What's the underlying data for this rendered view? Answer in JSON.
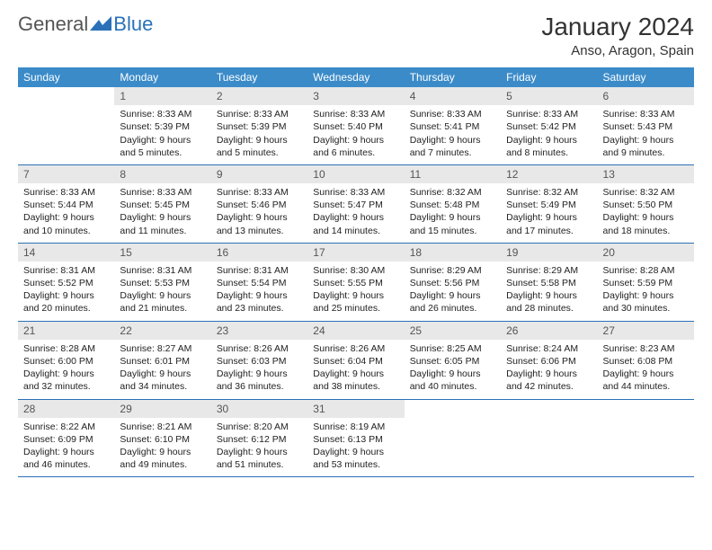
{
  "logo": {
    "text1": "General",
    "text2": "Blue"
  },
  "title": "January 2024",
  "location": "Anso, Aragon, Spain",
  "colors": {
    "header_bg": "#3b8bc9",
    "header_text": "#ffffff",
    "daynum_bg": "#e8e8e8",
    "daynum_text": "#555555",
    "border": "#2a71b8",
    "logo_gray": "#555555",
    "logo_blue": "#2a71b8",
    "body_text": "#222222",
    "background": "#ffffff"
  },
  "typography": {
    "title_fontsize": 28,
    "location_fontsize": 15,
    "weekday_fontsize": 12,
    "daynum_fontsize": 12,
    "cell_fontsize": 10.5
  },
  "weekdays": [
    "Sunday",
    "Monday",
    "Tuesday",
    "Wednesday",
    "Thursday",
    "Friday",
    "Saturday"
  ],
  "weeks": [
    [
      null,
      {
        "n": "1",
        "sunrise": "8:33 AM",
        "sunset": "5:39 PM",
        "daylight": "9 hours and 5 minutes."
      },
      {
        "n": "2",
        "sunrise": "8:33 AM",
        "sunset": "5:39 PM",
        "daylight": "9 hours and 5 minutes."
      },
      {
        "n": "3",
        "sunrise": "8:33 AM",
        "sunset": "5:40 PM",
        "daylight": "9 hours and 6 minutes."
      },
      {
        "n": "4",
        "sunrise": "8:33 AM",
        "sunset": "5:41 PM",
        "daylight": "9 hours and 7 minutes."
      },
      {
        "n": "5",
        "sunrise": "8:33 AM",
        "sunset": "5:42 PM",
        "daylight": "9 hours and 8 minutes."
      },
      {
        "n": "6",
        "sunrise": "8:33 AM",
        "sunset": "5:43 PM",
        "daylight": "9 hours and 9 minutes."
      }
    ],
    [
      {
        "n": "7",
        "sunrise": "8:33 AM",
        "sunset": "5:44 PM",
        "daylight": "9 hours and 10 minutes."
      },
      {
        "n": "8",
        "sunrise": "8:33 AM",
        "sunset": "5:45 PM",
        "daylight": "9 hours and 11 minutes."
      },
      {
        "n": "9",
        "sunrise": "8:33 AM",
        "sunset": "5:46 PM",
        "daylight": "9 hours and 13 minutes."
      },
      {
        "n": "10",
        "sunrise": "8:33 AM",
        "sunset": "5:47 PM",
        "daylight": "9 hours and 14 minutes."
      },
      {
        "n": "11",
        "sunrise": "8:32 AM",
        "sunset": "5:48 PM",
        "daylight": "9 hours and 15 minutes."
      },
      {
        "n": "12",
        "sunrise": "8:32 AM",
        "sunset": "5:49 PM",
        "daylight": "9 hours and 17 minutes."
      },
      {
        "n": "13",
        "sunrise": "8:32 AM",
        "sunset": "5:50 PM",
        "daylight": "9 hours and 18 minutes."
      }
    ],
    [
      {
        "n": "14",
        "sunrise": "8:31 AM",
        "sunset": "5:52 PM",
        "daylight": "9 hours and 20 minutes."
      },
      {
        "n": "15",
        "sunrise": "8:31 AM",
        "sunset": "5:53 PM",
        "daylight": "9 hours and 21 minutes."
      },
      {
        "n": "16",
        "sunrise": "8:31 AM",
        "sunset": "5:54 PM",
        "daylight": "9 hours and 23 minutes."
      },
      {
        "n": "17",
        "sunrise": "8:30 AM",
        "sunset": "5:55 PM",
        "daylight": "9 hours and 25 minutes."
      },
      {
        "n": "18",
        "sunrise": "8:29 AM",
        "sunset": "5:56 PM",
        "daylight": "9 hours and 26 minutes."
      },
      {
        "n": "19",
        "sunrise": "8:29 AM",
        "sunset": "5:58 PM",
        "daylight": "9 hours and 28 minutes."
      },
      {
        "n": "20",
        "sunrise": "8:28 AM",
        "sunset": "5:59 PM",
        "daylight": "9 hours and 30 minutes."
      }
    ],
    [
      {
        "n": "21",
        "sunrise": "8:28 AM",
        "sunset": "6:00 PM",
        "daylight": "9 hours and 32 minutes."
      },
      {
        "n": "22",
        "sunrise": "8:27 AM",
        "sunset": "6:01 PM",
        "daylight": "9 hours and 34 minutes."
      },
      {
        "n": "23",
        "sunrise": "8:26 AM",
        "sunset": "6:03 PM",
        "daylight": "9 hours and 36 minutes."
      },
      {
        "n": "24",
        "sunrise": "8:26 AM",
        "sunset": "6:04 PM",
        "daylight": "9 hours and 38 minutes."
      },
      {
        "n": "25",
        "sunrise": "8:25 AM",
        "sunset": "6:05 PM",
        "daylight": "9 hours and 40 minutes."
      },
      {
        "n": "26",
        "sunrise": "8:24 AM",
        "sunset": "6:06 PM",
        "daylight": "9 hours and 42 minutes."
      },
      {
        "n": "27",
        "sunrise": "8:23 AM",
        "sunset": "6:08 PM",
        "daylight": "9 hours and 44 minutes."
      }
    ],
    [
      {
        "n": "28",
        "sunrise": "8:22 AM",
        "sunset": "6:09 PM",
        "daylight": "9 hours and 46 minutes."
      },
      {
        "n": "29",
        "sunrise": "8:21 AM",
        "sunset": "6:10 PM",
        "daylight": "9 hours and 49 minutes."
      },
      {
        "n": "30",
        "sunrise": "8:20 AM",
        "sunset": "6:12 PM",
        "daylight": "9 hours and 51 minutes."
      },
      {
        "n": "31",
        "sunrise": "8:19 AM",
        "sunset": "6:13 PM",
        "daylight": "9 hours and 53 minutes."
      },
      null,
      null,
      null
    ]
  ]
}
